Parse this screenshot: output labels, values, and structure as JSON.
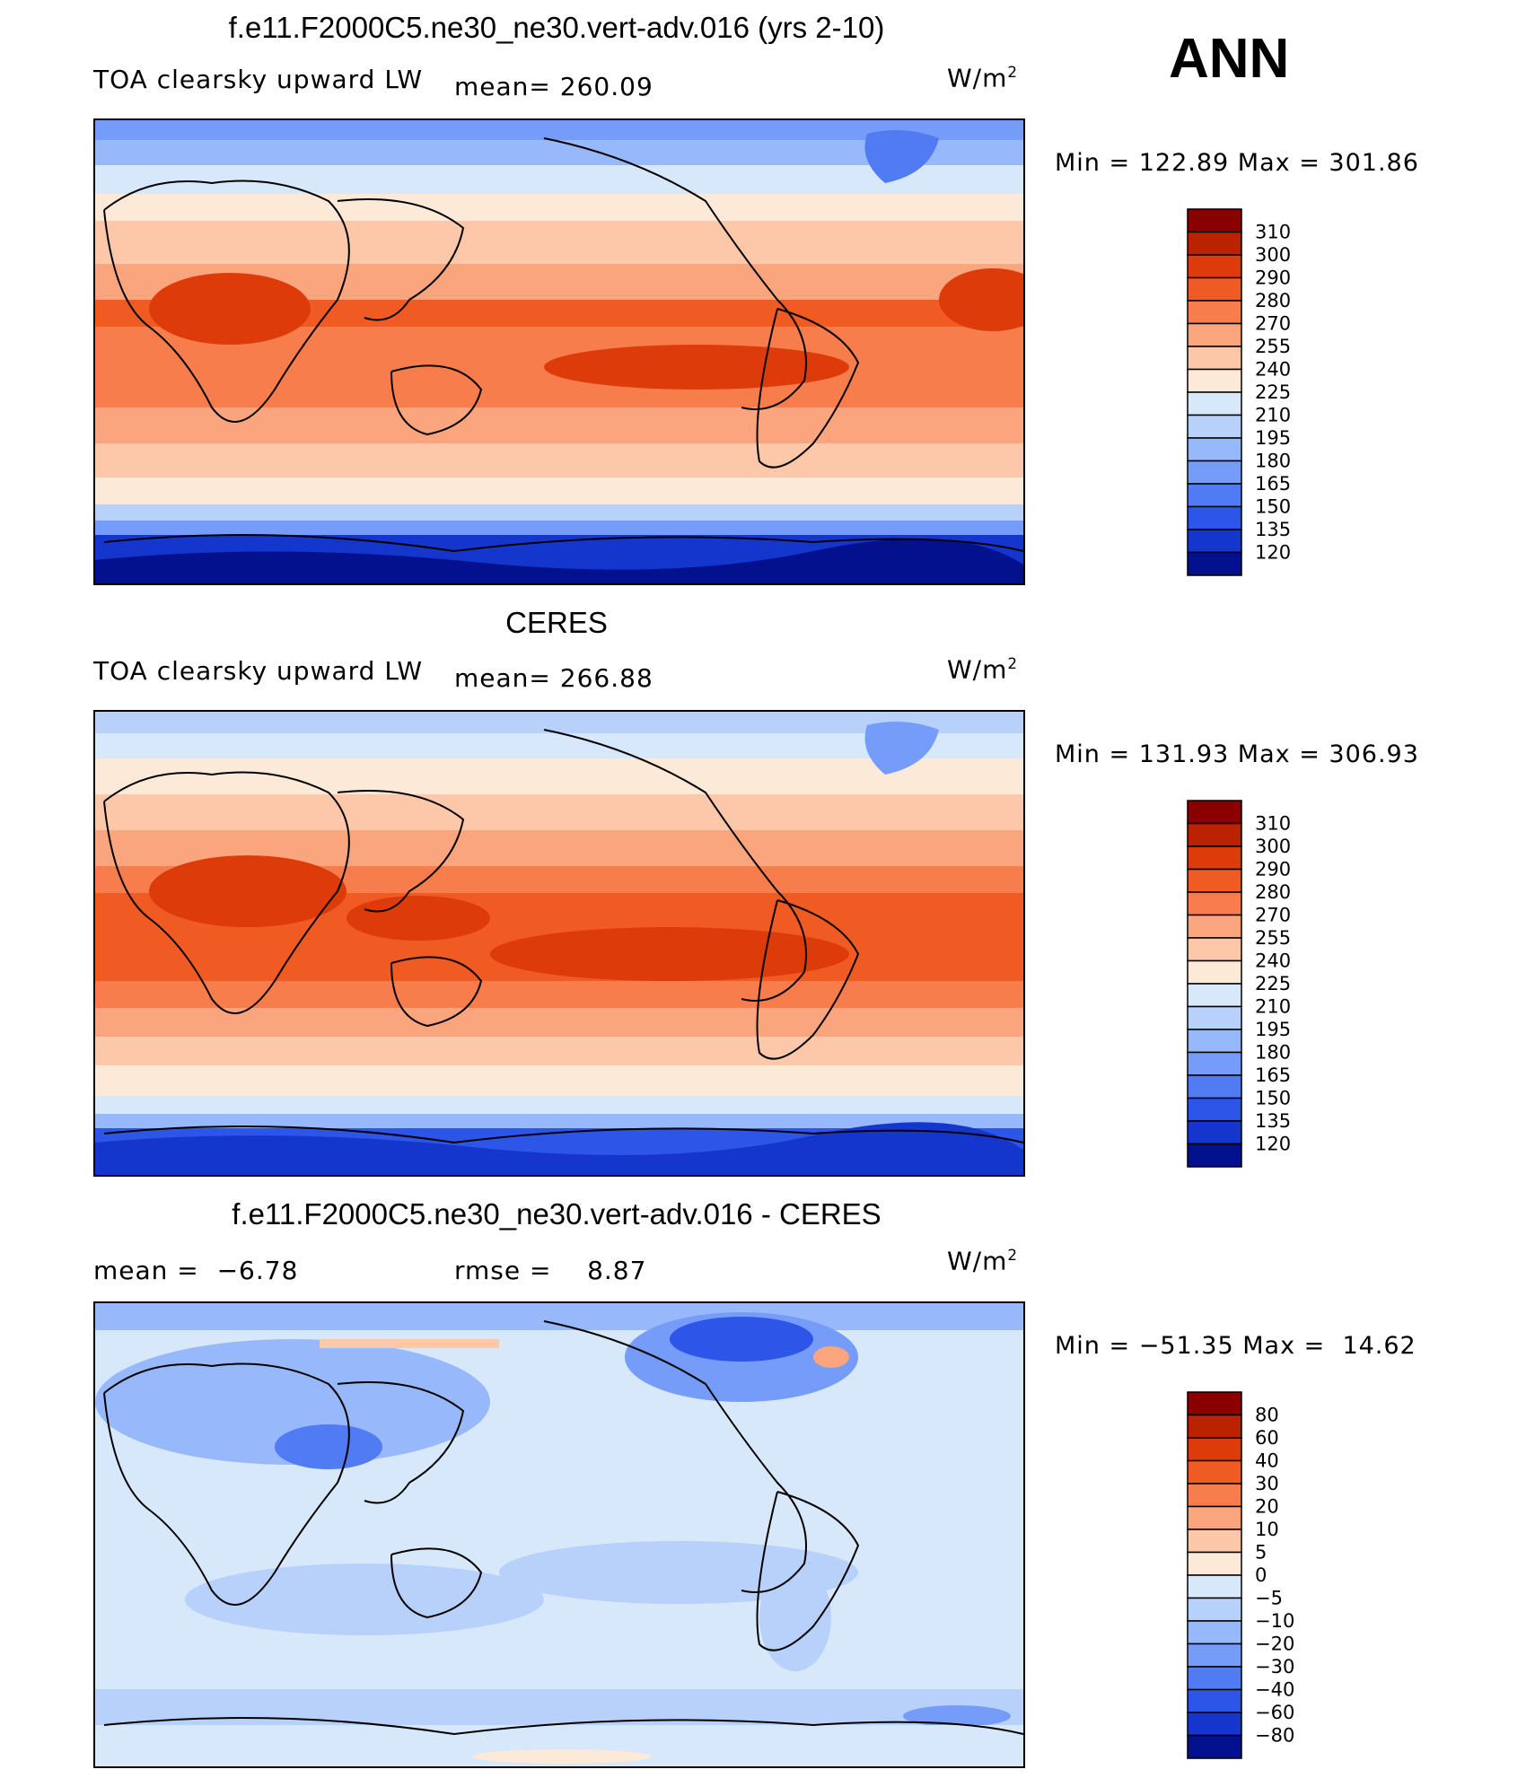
{
  "season": "ANN",
  "chart_data": [
    {
      "type": "heatmap",
      "title": "f.e11.F2000C5.ne30_ne30.vert-adv.016 (yrs 2-10)",
      "left_label": "TOA clearsky upward LW",
      "stat_label": "mean=",
      "stat_value": "260.09",
      "units": "W/m",
      "units_exp": "2",
      "min_label": "Min =",
      "min_value": "122.89",
      "max_label": "Max =",
      "max_value": "301.86",
      "levels": [
        "310",
        "300",
        "290",
        "280",
        "270",
        "255",
        "240",
        "225",
        "210",
        "195",
        "180",
        "165",
        "150",
        "135",
        "120"
      ],
      "colors": [
        "#8a0000",
        "#bb2200",
        "#dd3b0a",
        "#f05a23",
        "#f77d4d",
        "#fba57e",
        "#fdc8a9",
        "#fde9d7",
        "#d7e8fb",
        "#b7d1fb",
        "#97b8fa",
        "#749cf8",
        "#507bf3",
        "#2d55e8",
        "#1536cc",
        "#04118f"
      ]
    },
    {
      "type": "heatmap",
      "title": "CERES",
      "left_label": "TOA clearsky upward LW",
      "stat_label": "mean=",
      "stat_value": "266.88",
      "units": "W/m",
      "units_exp": "2",
      "min_label": "Min =",
      "min_value": "131.93",
      "max_label": "Max =",
      "max_value": "306.93",
      "levels": [
        "310",
        "300",
        "290",
        "280",
        "270",
        "255",
        "240",
        "225",
        "210",
        "195",
        "180",
        "165",
        "150",
        "135",
        "120"
      ],
      "colors": [
        "#8a0000",
        "#bb2200",
        "#dd3b0a",
        "#f05a23",
        "#f77d4d",
        "#fba57e",
        "#fdc8a9",
        "#fde9d7",
        "#d7e8fb",
        "#b7d1fb",
        "#97b8fa",
        "#749cf8",
        "#507bf3",
        "#2d55e8",
        "#1536cc",
        "#04118f"
      ]
    },
    {
      "type": "heatmap",
      "title": "f.e11.F2000C5.ne30_ne30.vert-adv.016 - CERES",
      "mean_label": "mean =",
      "mean_value": "−6.78",
      "rmse_label": "rmse =",
      "rmse_value": "8.87",
      "units": "W/m",
      "units_exp": "2",
      "min_label": "Min =",
      "min_value": "−51.35",
      "max_label": "Max =",
      "max_value": "14.62",
      "levels": [
        "80",
        "60",
        "40",
        "30",
        "20",
        "10",
        "5",
        "0",
        "−5",
        "−10",
        "−20",
        "−30",
        "−40",
        "−60",
        "−80"
      ],
      "colors": [
        "#8a0000",
        "#bb2200",
        "#dd3b0a",
        "#f05a23",
        "#f77d4d",
        "#fba57e",
        "#fdc8a9",
        "#fde9d7",
        "#d7e8fb",
        "#b7d1fb",
        "#97b8fa",
        "#749cf8",
        "#507bf3",
        "#2d55e8",
        "#1536cc",
        "#04118f"
      ]
    }
  ]
}
